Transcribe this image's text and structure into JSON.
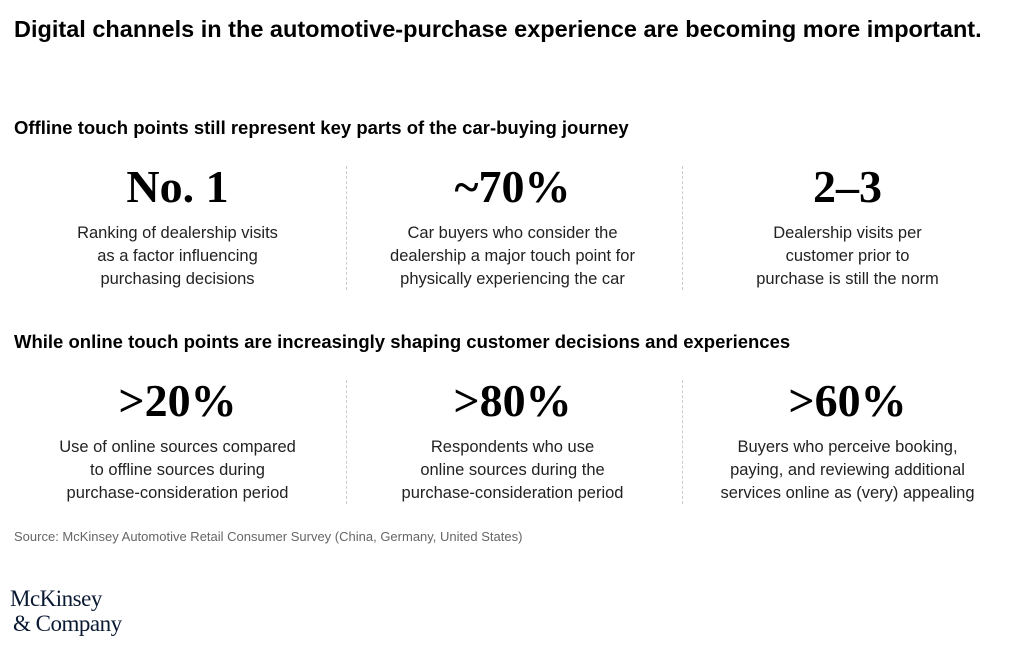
{
  "title": "Digital channels in the automotive-purchase experience are becoming more important.",
  "sections": [
    {
      "heading": "Offline touch points still represent key parts of the car-buying journey",
      "stats": [
        {
          "value": "No. 1",
          "desc": [
            "Ranking of dealership visits",
            "as a factor influencing",
            "purchasing decisions"
          ]
        },
        {
          "value": "~70%",
          "desc": [
            "Car buyers who consider the",
            "dealership a major touch point for",
            "physically experiencing the car"
          ]
        },
        {
          "value": "2–3",
          "desc": [
            "Dealership visits per",
            "customer prior to",
            "purchase is still the norm"
          ]
        }
      ]
    },
    {
      "heading": "While online touch points are increasingly shaping customer decisions and experiences",
      "stats": [
        {
          "value": ">20%",
          "desc": [
            "Use of online sources compared",
            "to offline sources during",
            "purchase-consideration period"
          ]
        },
        {
          "value": ">80%",
          "desc": [
            "Respondents who use",
            "online sources during the",
            "purchase-consideration period"
          ]
        },
        {
          "value": ">60%",
          "desc": [
            "Buyers who perceive booking,",
            "paying, and reviewing additional",
            "services online as (very) appealing"
          ]
        }
      ]
    }
  ],
  "source": "Source: McKinsey Automotive Retail Consumer Survey (China, Germany, United States)",
  "logo": {
    "line1": "McKinsey",
    "line2": "& Company"
  }
}
